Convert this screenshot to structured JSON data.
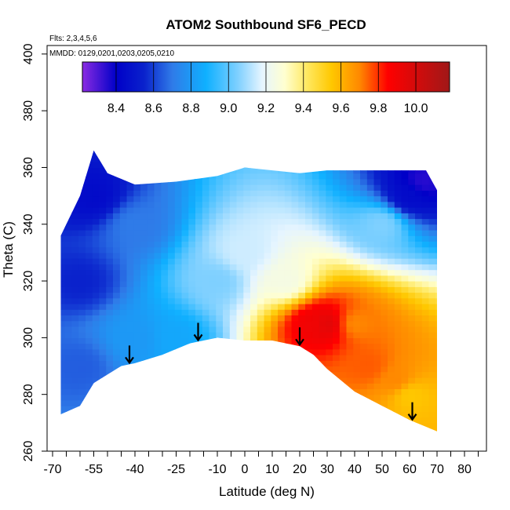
{
  "chart_data": {
    "type": "heatmap",
    "title": "ATOM2 Southbound SF6_PECD",
    "subtitle_flights": "Flts: 2,3,4,5,6",
    "subtitle_dates": "MMDD: 0129,0201,0203,0205,0210",
    "xlabel": "Latitude (deg N)",
    "ylabel": "Theta (C)",
    "xlim": [
      -72,
      88
    ],
    "ylim": [
      260,
      403
    ],
    "x_tick_labels": [
      -70,
      -55,
      -40,
      -25,
      -10,
      0,
      10,
      20,
      30,
      40,
      50,
      60,
      70,
      80
    ],
    "x_minor_ticks": [
      -65,
      -60,
      -50,
      -45,
      -35,
      -30,
      -20,
      -15,
      -5,
      5,
      15,
      25,
      35,
      45,
      55,
      65,
      75,
      85
    ],
    "y_tick_labels": [
      260,
      280,
      300,
      320,
      340,
      360,
      380,
      400
    ],
    "colorbar": {
      "range": [
        8.22,
        10.18
      ],
      "tick_labels": [
        8.4,
        8.6,
        8.8,
        9.0,
        9.2,
        9.4,
        9.6,
        9.8,
        10.0
      ],
      "stops": [
        {
          "v": 8.22,
          "color": "#8a2be2"
        },
        {
          "v": 8.4,
          "color": "#0000c8"
        },
        {
          "v": 8.55,
          "color": "#0a22cc"
        },
        {
          "v": 8.7,
          "color": "#2f7be8"
        },
        {
          "v": 8.88,
          "color": "#0fb0ff"
        },
        {
          "v": 9.05,
          "color": "#7fd0ff"
        },
        {
          "v": 9.18,
          "color": "#e6f5ff"
        },
        {
          "v": 9.3,
          "color": "#ffffd0"
        },
        {
          "v": 9.42,
          "color": "#ffe860"
        },
        {
          "v": 9.55,
          "color": "#ffc800"
        },
        {
          "v": 9.7,
          "color": "#ff8800"
        },
        {
          "v": 9.85,
          "color": "#ff0000"
        },
        {
          "v": 10.18,
          "color": "#a01818"
        }
      ]
    },
    "arrows_latitude": [
      -42,
      -17,
      20,
      61
    ],
    "curtain_boundary": {
      "top": [
        [
          -67,
          336
        ],
        [
          -60,
          350
        ],
        [
          -55,
          366
        ],
        [
          -50,
          358
        ],
        [
          -40,
          354
        ],
        [
          -25,
          355
        ],
        [
          -10,
          357
        ],
        [
          0,
          360
        ],
        [
          10,
          359
        ],
        [
          20,
          358
        ],
        [
          30,
          359
        ],
        [
          40,
          359
        ],
        [
          50,
          359
        ],
        [
          60,
          359
        ],
        [
          66,
          359
        ],
        [
          70,
          352
        ]
      ],
      "bottom": [
        [
          -67,
          273
        ],
        [
          -60,
          276
        ],
        [
          -55,
          284
        ],
        [
          -45,
          290
        ],
        [
          -40,
          291
        ],
        [
          -30,
          294
        ],
        [
          -20,
          298
        ],
        [
          -10,
          300
        ],
        [
          0,
          299
        ],
        [
          10,
          299
        ],
        [
          20,
          297
        ],
        [
          25,
          294
        ],
        [
          30,
          289
        ],
        [
          40,
          281
        ],
        [
          50,
          276
        ],
        [
          60,
          271
        ],
        [
          70,
          267
        ]
      ]
    },
    "field_description_points": [
      [
        -60,
        290,
        8.65
      ],
      [
        -60,
        320,
        8.55
      ],
      [
        -55,
        350,
        8.45
      ],
      [
        -40,
        300,
        8.8
      ],
      [
        -40,
        340,
        8.7
      ],
      [
        -25,
        300,
        8.85
      ],
      [
        -10,
        320,
        9.05
      ],
      [
        0,
        330,
        9.15
      ],
      [
        15,
        320,
        9.25
      ],
      [
        25,
        305,
        9.9
      ],
      [
        30,
        305,
        9.95
      ],
      [
        40,
        305,
        9.7
      ],
      [
        45,
        290,
        9.75
      ],
      [
        55,
        285,
        9.7
      ],
      [
        60,
        280,
        9.55
      ],
      [
        50,
        340,
        9.05
      ],
      [
        60,
        350,
        8.45
      ],
      [
        65,
        355,
        8.35
      ]
    ]
  }
}
